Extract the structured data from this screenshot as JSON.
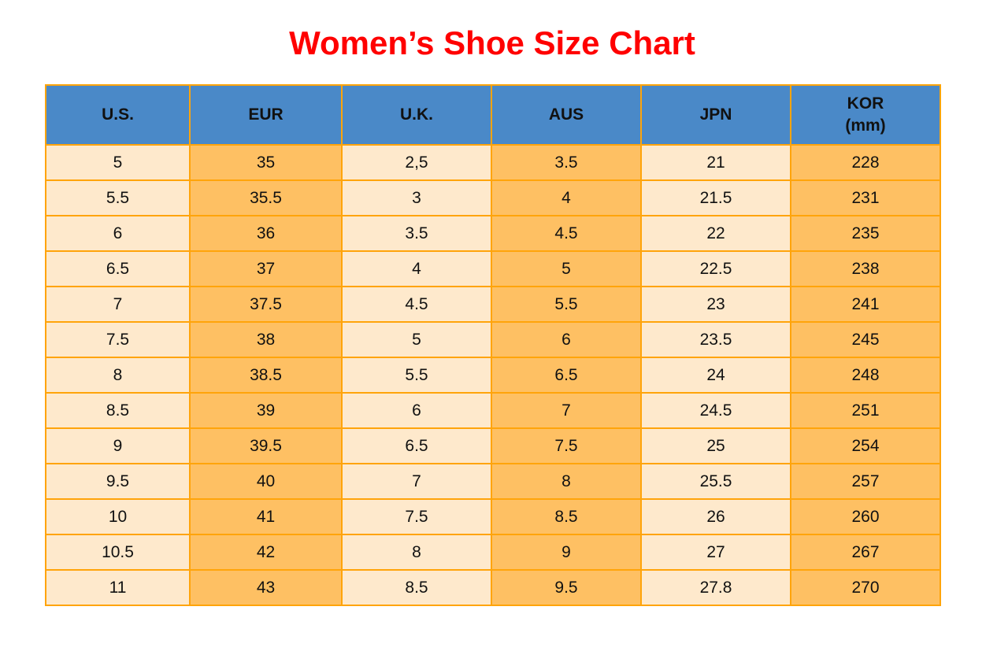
{
  "page": {
    "title": "Women’s Shoe Size Chart"
  },
  "colors": {
    "title_red": "#FF0000",
    "header_blue": "#4A89C8",
    "cell_light": "#FEE9CC",
    "cell_dark": "#FEC063",
    "grid_orange": "#FFA40A",
    "text_black": "#111111"
  },
  "table": {
    "columns": [
      {
        "line1": "U.S.",
        "line2": ""
      },
      {
        "line1": "EUR",
        "line2": ""
      },
      {
        "line1": "U.K.",
        "line2": ""
      },
      {
        "line1": "AUS",
        "line2": ""
      },
      {
        "line1": "JPN",
        "line2": ""
      },
      {
        "line1": "KOR",
        "line2": "(mm)"
      }
    ],
    "rows": [
      [
        "5",
        "35",
        "2,5",
        "3.5",
        "21",
        "228"
      ],
      [
        "5.5",
        "35.5",
        "3",
        "4",
        "21.5",
        "231"
      ],
      [
        "6",
        "36",
        "3.5",
        "4.5",
        "22",
        "235"
      ],
      [
        "6.5",
        "37",
        "4",
        "5",
        "22.5",
        "238"
      ],
      [
        "7",
        "37.5",
        "4.5",
        "5.5",
        "23",
        "241"
      ],
      [
        "7.5",
        "38",
        "5",
        "6",
        "23.5",
        "245"
      ],
      [
        "8",
        "38.5",
        "5.5",
        "6.5",
        "24",
        "248"
      ],
      [
        "8.5",
        "39",
        "6",
        "7",
        "24.5",
        "251"
      ],
      [
        "9",
        "39.5",
        "6.5",
        "7.5",
        "25",
        "254"
      ],
      [
        "9.5",
        "40",
        "7",
        "8",
        "25.5",
        "257"
      ],
      [
        "10",
        "41",
        "7.5",
        "8.5",
        "26",
        "260"
      ],
      [
        "10.5",
        "42",
        "8",
        "9",
        "27",
        "267"
      ],
      [
        "11",
        "43",
        "8.5",
        "9.5",
        "27.8",
        "270"
      ]
    ]
  },
  "chart_data": {
    "type": "table",
    "title": "Women’s Shoe Size Chart",
    "columns": [
      "U.S.",
      "EUR",
      "U.K.",
      "AUS",
      "JPN",
      "KOR (mm)"
    ],
    "rows": [
      [
        "5",
        "35",
        "2,5",
        "3.5",
        "21",
        "228"
      ],
      [
        "5.5",
        "35.5",
        "3",
        "4",
        "21.5",
        "231"
      ],
      [
        "6",
        "36",
        "3.5",
        "4.5",
        "22",
        "235"
      ],
      [
        "6.5",
        "37",
        "4",
        "5",
        "22.5",
        "238"
      ],
      [
        "7",
        "37.5",
        "4.5",
        "5.5",
        "23",
        "241"
      ],
      [
        "7.5",
        "38",
        "5",
        "6",
        "23.5",
        "245"
      ],
      [
        "8",
        "38.5",
        "5.5",
        "6.5",
        "24",
        "248"
      ],
      [
        "8.5",
        "39",
        "6",
        "7",
        "24.5",
        "251"
      ],
      [
        "9",
        "39.5",
        "6.5",
        "7.5",
        "25",
        "254"
      ],
      [
        "9.5",
        "40",
        "7",
        "8",
        "25.5",
        "257"
      ],
      [
        "10",
        "41",
        "7.5",
        "8.5",
        "26",
        "260"
      ],
      [
        "10.5",
        "42",
        "8",
        "9",
        "27",
        "267"
      ],
      [
        "11",
        "43",
        "8.5",
        "9.5",
        "27.8",
        "270"
      ]
    ]
  }
}
